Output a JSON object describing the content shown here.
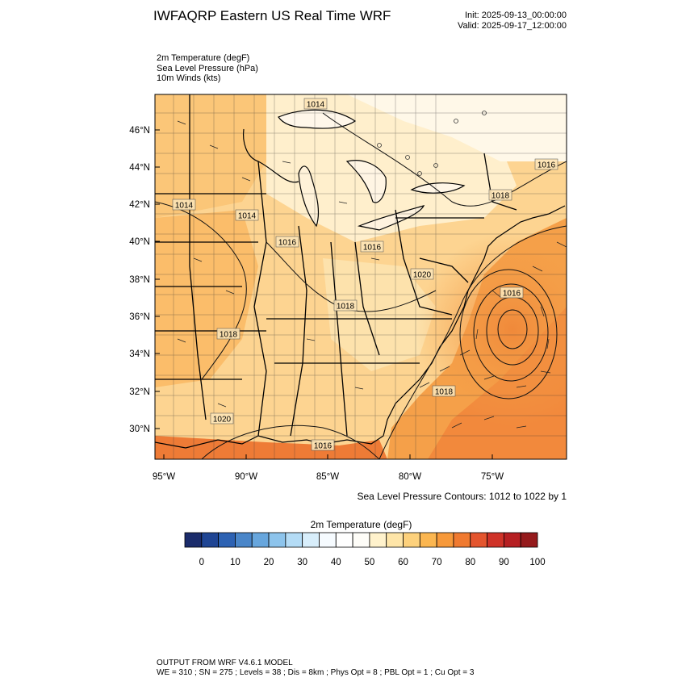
{
  "header": {
    "title": "IWFAQRP Eastern US Real Time WRF",
    "init": "Init: 2025-09-13_00:00:00",
    "valid": "Valid: 2025-09-17_12:00:00"
  },
  "fields": [
    "2m Temperature   (degF)",
    "Sea Level Pressure   (hPa)",
    "10m Winds   (kts)"
  ],
  "map": {
    "lat_labels": [
      "46°N",
      "44°N",
      "42°N",
      "40°N",
      "38°N",
      "36°N",
      "34°N",
      "32°N",
      "30°N"
    ],
    "lon_labels": [
      "95°W",
      "90°W",
      "85°W",
      "80°W",
      "75°W"
    ],
    "pressure_labels": [
      "1014",
      "1014",
      "1014",
      "1016",
      "1016",
      "1018",
      "1020",
      "1018",
      "1020",
      "1016",
      "1016",
      "1018",
      "1016",
      "1018"
    ],
    "contour_note": "Sea Level Pressure Contours: 1012 to 1022 by 1"
  },
  "colorbar": {
    "title": "2m Temperature  (degF)",
    "colors": [
      "#1b2c6b",
      "#1f4594",
      "#2d62b3",
      "#4a86c9",
      "#67a6dd",
      "#8dc4ec",
      "#b4dcf6",
      "#d8eefb",
      "#f6fbff",
      "#ffffff",
      "#fefdf8",
      "#fff2cc",
      "#fee5a8",
      "#fdd17c",
      "#fbb650",
      "#f7993a",
      "#f07a30",
      "#e4552e",
      "#cf3228",
      "#b61f22",
      "#951a1c"
    ],
    "tick_labels": [
      "0",
      "10",
      "20",
      "30",
      "40",
      "50",
      "60",
      "70",
      "80",
      "90",
      "100"
    ]
  },
  "footer": {
    "line1": "OUTPUT FROM WRF V4.6.1 MODEL",
    "line2": "WE = 310 ; SN = 275 ; Levels = 38 ; Dis = 8km ; Phys Opt = 8 ; PBL Opt = 1 ; Cu Opt = 3"
  }
}
